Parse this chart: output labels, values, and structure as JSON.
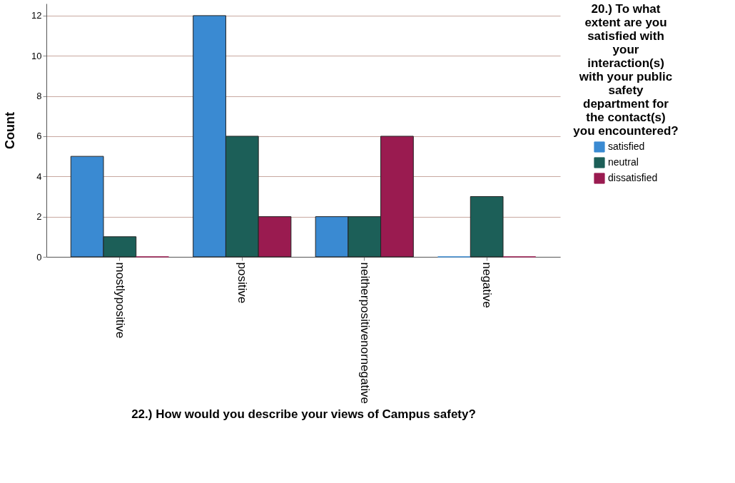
{
  "chart_data": {
    "type": "bar",
    "categories": [
      "mostlypositive",
      "positive",
      "neitherpositivenornegative",
      "negative"
    ],
    "series": [
      {
        "name": "satisfied",
        "color": "#3a8ad2",
        "values": [
          5,
          12,
          2,
          0
        ]
      },
      {
        "name": "neutral",
        "color": "#1c5f58",
        "values": [
          1,
          6,
          2,
          3
        ]
      },
      {
        "name": "dissatisfied",
        "color": "#9a1b50",
        "values": [
          0,
          2,
          6,
          0
        ]
      }
    ],
    "xlabel": "22.) How would you describe your views of Campus safety?",
    "ylabel": "Count",
    "legend_title": "20.) To what extent are you satisfied with your interaction(s) with your public safety department for the contact(s) you encountered?",
    "ylim": [
      0,
      12.6
    ],
    "yticks": [
      0,
      2,
      4,
      6,
      8,
      10,
      12
    ],
    "grid": "y",
    "legend": "right"
  }
}
